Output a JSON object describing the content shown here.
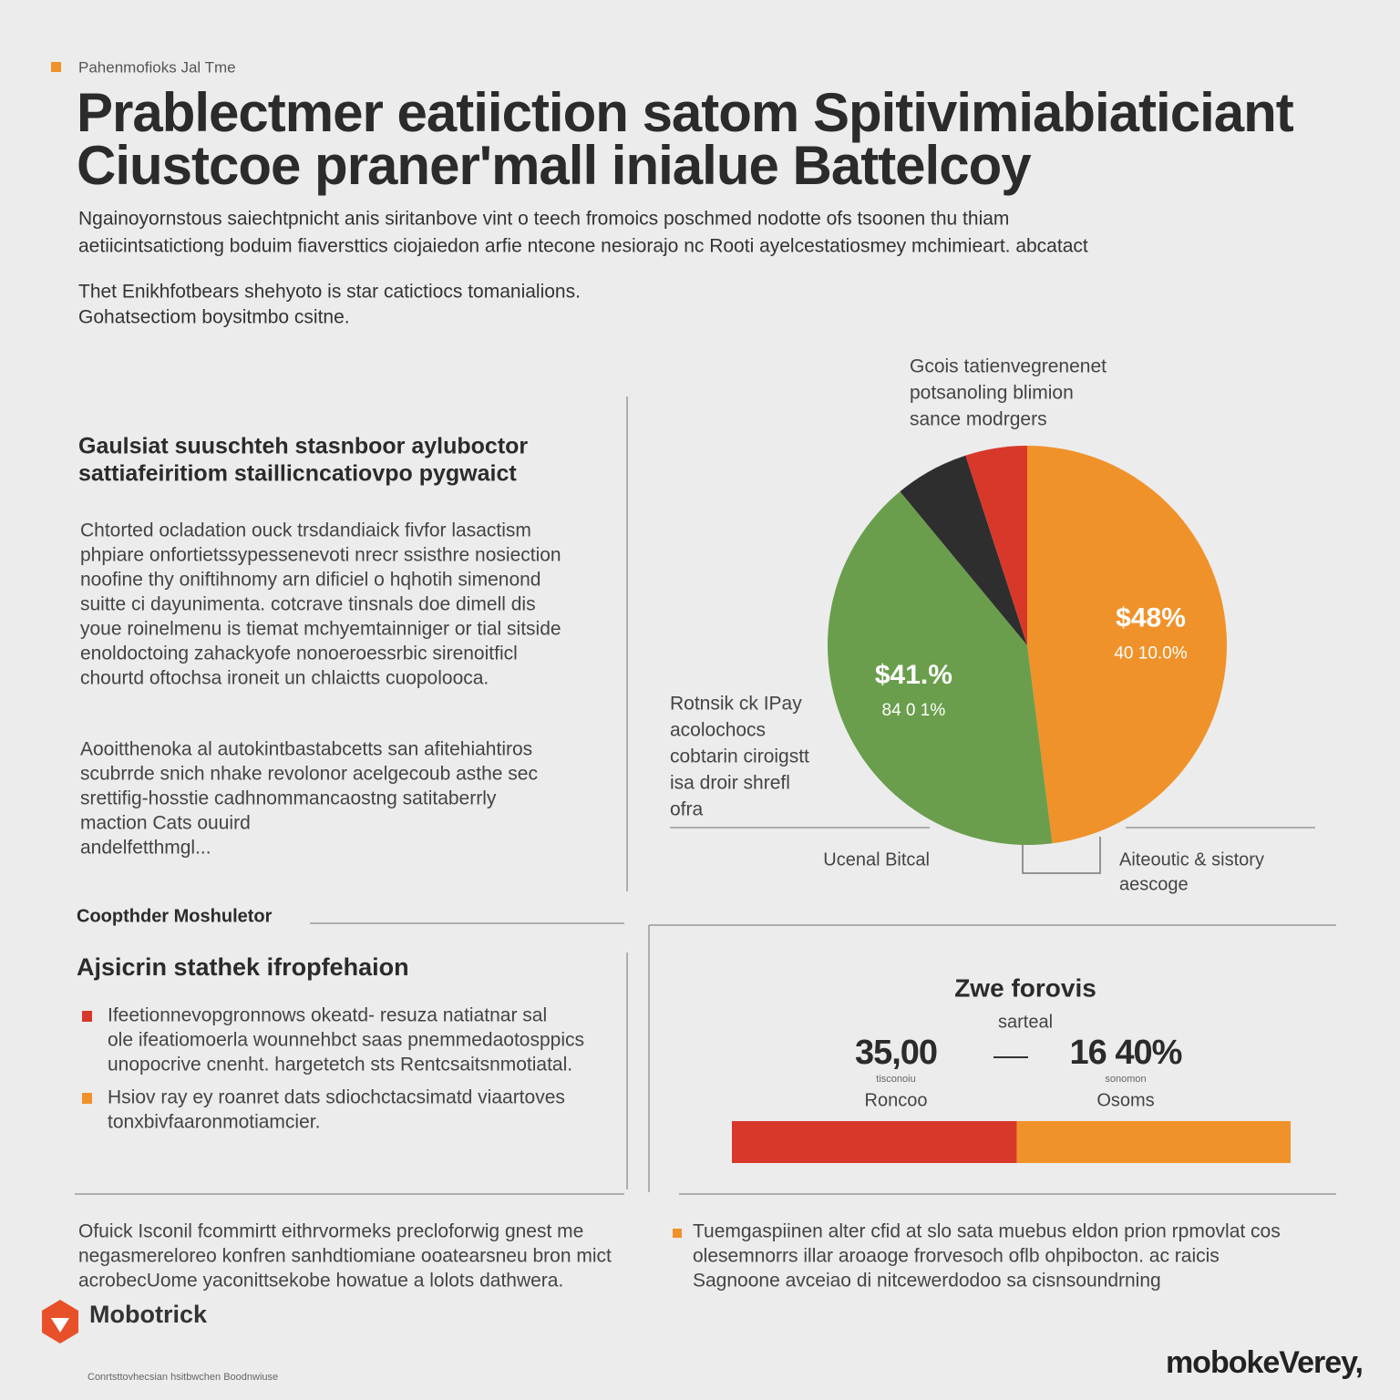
{
  "header": {
    "tag": "Pahenmofioks Jal Tme",
    "title": [
      "Prablectmer eatiiction satom Spitivimiabiaticiant",
      "Ciustcoe praner'mall inialue Battelcoy"
    ],
    "subtitle": [
      "Ngainoyornstous saiechtpnicht anis siritanbove vint o teech fromoics poschmed nodotte ofs tsoonen thu thiam",
      "aetiicintsatictiong boduim fiaversttics ciojaiedon arfie ntecone nesiorajo nc Rooti ayelcestatiosmey mchimieart. abcatact"
    ],
    "intro": [
      "Thet Enikhfotbears shehyoto is star catictiocs tomanialions.",
      "Gohatsectiom boysitmbo csitne."
    ]
  },
  "left": {
    "heading": [
      "Gaulsiat suuschteh stasnboor ayluboctor",
      "sattiafeiritiom staillicncatiovpo pygwaict"
    ],
    "paragraph1": [
      "Chtorted ocladation ouck trsdandiaick fivfor lasactism",
      "phpiare onfortietssypessenevoti nrecr ssisthre nosiection",
      "noofine thy oniftihnomy arn dificiel o hqhotih simenond",
      "suitte ci dayunimenta. cotcrave tinsnals doe dimell dis",
      "youe roinelmenu is tiemat mchyemtainniger or tial sitside",
      "enoldoctoing zahackyofe nonoeroessrbic sirenoitficl",
      "chourtd oftochsa ironeit un chlaictts cuopolooca."
    ],
    "paragraph2": [
      "Aooitthenoka al autokintbastabcetts san afitehiahtiros",
      "scubrrde snich nhake revolonor acelgecoub asthe sec",
      "srettifig-hosstie cadhnommancaostng satitaberrly",
      "maction Cats ouuird",
      "andelfetthmgl..."
    ],
    "section": "Coopthder Moshuletor",
    "heading2": "Ajsicrin stathek ifropfehaion",
    "bullet1": [
      "Ifeetionnevopgronnows okeatd- resuza natiatnar sal",
      "ole ifeatiomoerla wounnehbct saas pnemmedaotosppics",
      "unopocrive cnenht. hargetetch sts Rentcsaitsnmotiatal."
    ],
    "bullet2": [
      "Hsiov ray ey roanret dats sdiochctacsimatd viaartoves",
      "tonxbivfaaronmotiamcier."
    ]
  },
  "chart_data": [
    {
      "type": "pie",
      "title": [
        "Gcois tatienvegrenenet",
        "potsanoling blimion",
        "sance modrgers"
      ],
      "categories": [
        null,
        null,
        null,
        null
      ],
      "values": [
        48,
        41,
        6,
        5
      ],
      "colors": [
        "#f0922a",
        "#6a9e4c",
        "#2e2e2e",
        "#d8382a"
      ],
      "slice_texts": [
        [
          "$48%",
          "40 10.0%"
        ],
        [
          "$41.%",
          "84 0 1%"
        ],
        null,
        null
      ],
      "annotation": [
        "Rotnsik ck IPay",
        "acolochocs",
        "cobtarin ciroigstt",
        "isa droir shrefl",
        "ofra"
      ],
      "footnotes": [
        [
          "Ucenal Bitcal"
        ],
        [
          "Aiteoutic & sistory",
          "aescoge"
        ]
      ]
    },
    {
      "type": "bar",
      "orientation": "horizontal",
      "stacked": true,
      "title": "Zwe forovis",
      "subtitle": "sarteal",
      "values": [
        51,
        49
      ],
      "colors": [
        "#d8382a",
        "#f0922a"
      ],
      "stats": [
        [
          "35,00",
          "tisconoiu",
          "Roncoo"
        ],
        [
          "16 40%",
          "sonomon",
          "Osoms"
        ]
      ]
    }
  ],
  "bottom": {
    "left": [
      "Ofuick Isconil fcommirtt eithrvormeks precloforwig gnest me",
      "negasmereloreo konfren sanhdtiomiane ooatearsneu bron mict",
      "acrobecUome yaconittsekobe howatue a lolots dathwera."
    ],
    "right": [
      "Tuemgaspiinen alter cfid at slo sata muebus eldon prion rpmovlat cos",
      "olesemnorrs illar aroaoge frorvesoch oflb ohpibocton. ac raicis",
      "Sagnoone avceiao di nitcewerdodoo sa cisnsoundrning"
    ]
  },
  "footer": {
    "brand": "Mobotrick",
    "note": "Conrtsttovhecsian hsitbwchen Boodnwiuse",
    "right": "mobokeVerey,"
  }
}
